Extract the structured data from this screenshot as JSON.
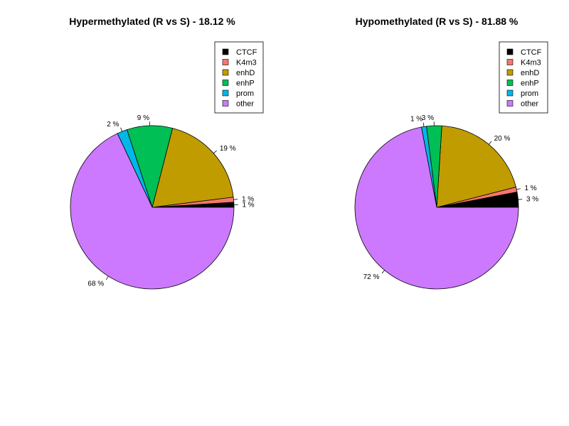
{
  "chart_data": [
    {
      "type": "pie",
      "title": "Hypermethylated (R vs S) - 18.12 %",
      "legend_position": "top-right",
      "slices": [
        {
          "name": "CTCF",
          "value": 1,
          "label": "1 %",
          "color": "#000000"
        },
        {
          "name": "K4m3",
          "value": 1,
          "label": "1 %",
          "color": "#F8766D"
        },
        {
          "name": "enhD",
          "value": 19,
          "label": "19 %",
          "color": "#C09C00"
        },
        {
          "name": "enhP",
          "value": 9,
          "label": "9 %",
          "color": "#00BF55"
        },
        {
          "name": "prom",
          "value": 2,
          "label": "2 %",
          "color": "#00B7E8"
        },
        {
          "name": "other",
          "value": 68,
          "label": "68 %",
          "color": "#CC79FF"
        }
      ]
    },
    {
      "type": "pie",
      "title": "Hypomethylated (R vs S) - 81.88 %",
      "legend_position": "top-right",
      "slices": [
        {
          "name": "CTCF",
          "value": 3,
          "label": "3 %",
          "color": "#000000"
        },
        {
          "name": "K4m3",
          "value": 1,
          "label": "1 %",
          "color": "#F8766D"
        },
        {
          "name": "enhD",
          "value": 20,
          "label": "20 %",
          "color": "#C09C00"
        },
        {
          "name": "enhP",
          "value": 3,
          "label": "3 %",
          "color": "#00BF55"
        },
        {
          "name": "prom",
          "value": 1,
          "label": "1 %",
          "color": "#00B7E8"
        },
        {
          "name": "other",
          "value": 72,
          "label": "72 %",
          "color": "#CC79FF"
        }
      ]
    }
  ]
}
